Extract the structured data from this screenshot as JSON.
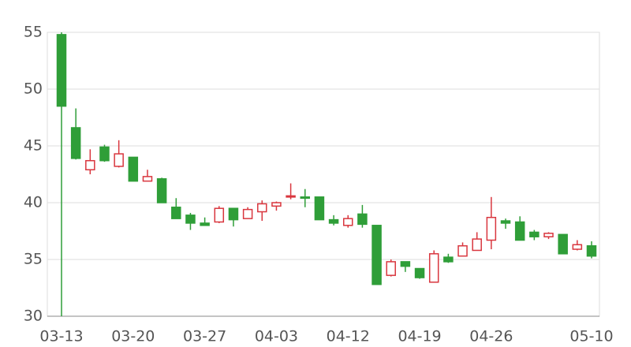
{
  "chart_data": {
    "type": "candlestick",
    "categories": [
      "03-13",
      null,
      null,
      null,
      null,
      "03-20",
      null,
      null,
      null,
      null,
      "03-27",
      null,
      null,
      null,
      null,
      "04-03",
      null,
      null,
      null,
      null,
      "04-12",
      null,
      null,
      null,
      null,
      "04-19",
      null,
      null,
      null,
      null,
      "04-26",
      null,
      null,
      null,
      null,
      null,
      null,
      "05-10"
    ],
    "open": [
      54.8,
      46.6,
      42.9,
      44.9,
      43.2,
      44.0,
      41.9,
      42.1,
      39.6,
      38.9,
      38.2,
      38.3,
      39.5,
      38.6,
      39.2,
      39.7,
      40.5,
      40.5,
      40.5,
      38.5,
      38.0,
      39.0,
      38.0,
      33.6,
      34.8,
      34.2,
      33.0,
      35.2,
      35.3,
      35.8,
      36.7,
      38.4,
      38.3,
      37.4,
      37.0,
      37.2,
      35.9,
      36.2
    ],
    "close": [
      48.5,
      43.9,
      43.7,
      43.7,
      44.3,
      41.9,
      42.3,
      40.0,
      38.6,
      38.2,
      38.0,
      39.5,
      38.5,
      39.4,
      39.9,
      40.0,
      40.6,
      40.4,
      38.5,
      38.2,
      38.6,
      38.1,
      32.8,
      34.8,
      34.4,
      33.4,
      35.5,
      34.8,
      36.2,
      36.8,
      38.7,
      38.2,
      36.7,
      37.0,
      37.3,
      35.5,
      36.3,
      35.3
    ],
    "low": [
      30.0,
      43.8,
      42.5,
      43.6,
      43.1,
      41.9,
      41.9,
      40.0,
      38.6,
      37.6,
      38.0,
      38.2,
      37.9,
      38.6,
      38.4,
      39.3,
      40.3,
      39.6,
      38.5,
      38.0,
      37.8,
      37.8,
      32.8,
      33.5,
      33.9,
      33.3,
      33.0,
      34.7,
      35.3,
      35.8,
      35.9,
      37.7,
      36.7,
      36.7,
      36.8,
      35.5,
      35.8,
      35.1
    ],
    "high": [
      55.0,
      48.3,
      44.7,
      45.1,
      45.5,
      44.0,
      42.9,
      42.2,
      40.4,
      39.1,
      38.7,
      39.7,
      39.5,
      39.6,
      40.2,
      40.1,
      41.7,
      41.2,
      40.5,
      38.9,
      38.9,
      39.8,
      38.0,
      35.0,
      34.8,
      34.2,
      35.8,
      35.5,
      36.5,
      37.4,
      40.5,
      38.6,
      38.8,
      37.6,
      37.4,
      37.2,
      36.7,
      36.6
    ],
    "up_color": "#d9363e",
    "down_color": "#2f9e38",
    "ylim": [
      30,
      55
    ],
    "yticks": [
      30,
      35,
      40,
      45,
      50,
      55
    ],
    "grid": true
  }
}
